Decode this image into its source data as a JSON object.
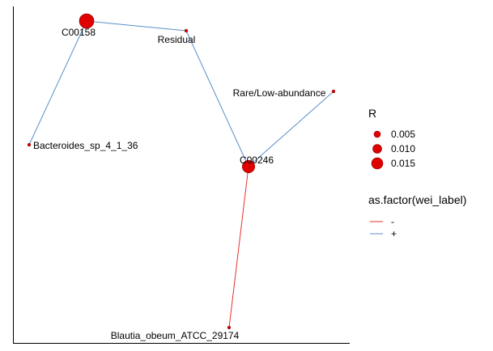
{
  "chart_data": {
    "type": "network",
    "title": "",
    "nodes": [
      {
        "id": "C00158",
        "label": "C00158",
        "R": 0.015
      },
      {
        "id": "Residual",
        "label": "Residual",
        "R": 0.001
      },
      {
        "id": "Rare/Low-abundance",
        "label": "Rare/Low-abundance",
        "R": 0.001
      },
      {
        "id": "Bacteroides_sp_4_1_36",
        "label": "Bacteroides_sp_4_1_36",
        "R": 0.001
      },
      {
        "id": "C00246",
        "label": "C00246",
        "R": 0.012
      },
      {
        "id": "Blautia_obeum_ATCC_29174",
        "label": "Blautia_obeum_ATCC_29174",
        "R": 0.001
      }
    ],
    "edges": [
      {
        "source": "C00158",
        "target": "Residual",
        "wei_label": "+"
      },
      {
        "source": "C00158",
        "target": "Bacteroides_sp_4_1_36",
        "wei_label": "+"
      },
      {
        "source": "Residual",
        "target": "C00246",
        "wei_label": "+"
      },
      {
        "source": "Rare/Low-abundance",
        "target": "C00246",
        "wei_label": "+"
      },
      {
        "source": "C00246",
        "target": "Blautia_obeum_ATCC_29174",
        "wei_label": "-"
      }
    ],
    "legend_size": {
      "title": "R",
      "entries": [
        {
          "label": "0.005",
          "value": 0.005
        },
        {
          "label": "0.010",
          "value": 0.01
        },
        {
          "label": "0.015",
          "value": 0.015
        }
      ]
    },
    "legend_color": {
      "title": "as.factor(wei_label)",
      "entries": [
        {
          "label": "-",
          "color": "#e8302a"
        },
        {
          "label": "+",
          "color": "#5b8fc9"
        }
      ]
    },
    "node_color": "#e00000",
    "node_outline": "#8b0000"
  }
}
